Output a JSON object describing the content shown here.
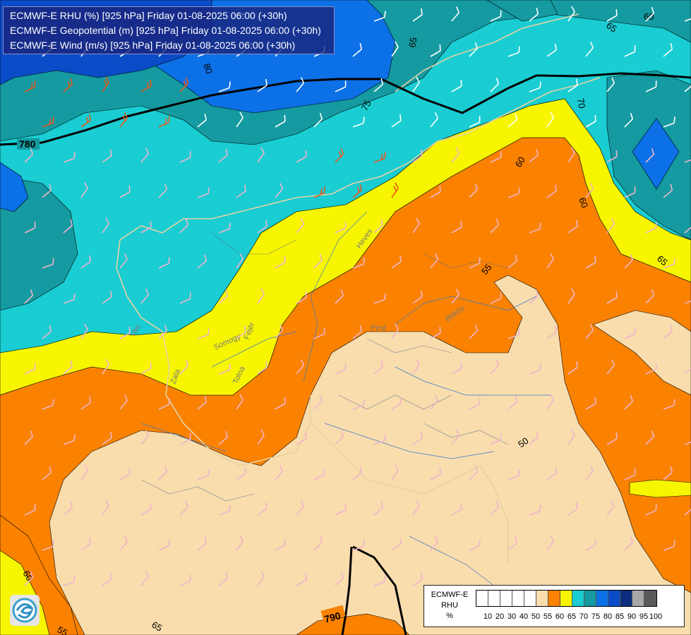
{
  "title_lines": [
    "ECMWF-E RHU (%) [925 hPa] Friday 01-08-2025 06:00 (+30h)",
    "ECMWF-E Geopotential (m) [925 hPa] Friday 01-08-2025 06:00 (+30h)",
    "ECMWF-E Wind (m/s) [925 hPa] Friday 01-08-2025 06:00 (+30h)"
  ],
  "legend": {
    "label_lines": [
      "ECMWF-E",
      "RHU",
      "%"
    ],
    "ticks": [
      "10",
      "20",
      "30",
      "40",
      "50",
      "55",
      "60",
      "65",
      "70",
      "75",
      "80",
      "85",
      "90",
      "95",
      "100"
    ],
    "colors": [
      "#ffffff",
      "#ffffff",
      "#ffffff",
      "#ffffff",
      "#ffffff",
      "#f9ddad",
      "#fa8200",
      "#f7f600",
      "#19cdd2",
      "#149aa0",
      "#0c70e6",
      "#0a4bc8",
      "#0a2d7d",
      "#a8a8a8",
      "#5a5a5a"
    ]
  },
  "contour_labels": {
    "rhu": [
      "60",
      "65",
      "80",
      "75",
      "70",
      "60",
      "60",
      "65",
      "55",
      "50",
      "65",
      "60",
      "55",
      "65"
    ],
    "geopotential": [
      "780",
      "790"
    ]
  },
  "place_labels": [
    "Pest",
    "Békés",
    "Heves",
    "Fejér",
    "Tolna",
    "Zala",
    "Vas",
    "Somogy"
  ],
  "colors": {
    "white": "#ffffff",
    "tan": "#f9ddad",
    "orange": "#fa8200",
    "yellow": "#f7f600",
    "cyan": "#19cdd2",
    "teal": "#149aa0",
    "blue": "#0c70e6",
    "darkblue": "#0a4bc8",
    "navy": "#0a2d7d"
  }
}
